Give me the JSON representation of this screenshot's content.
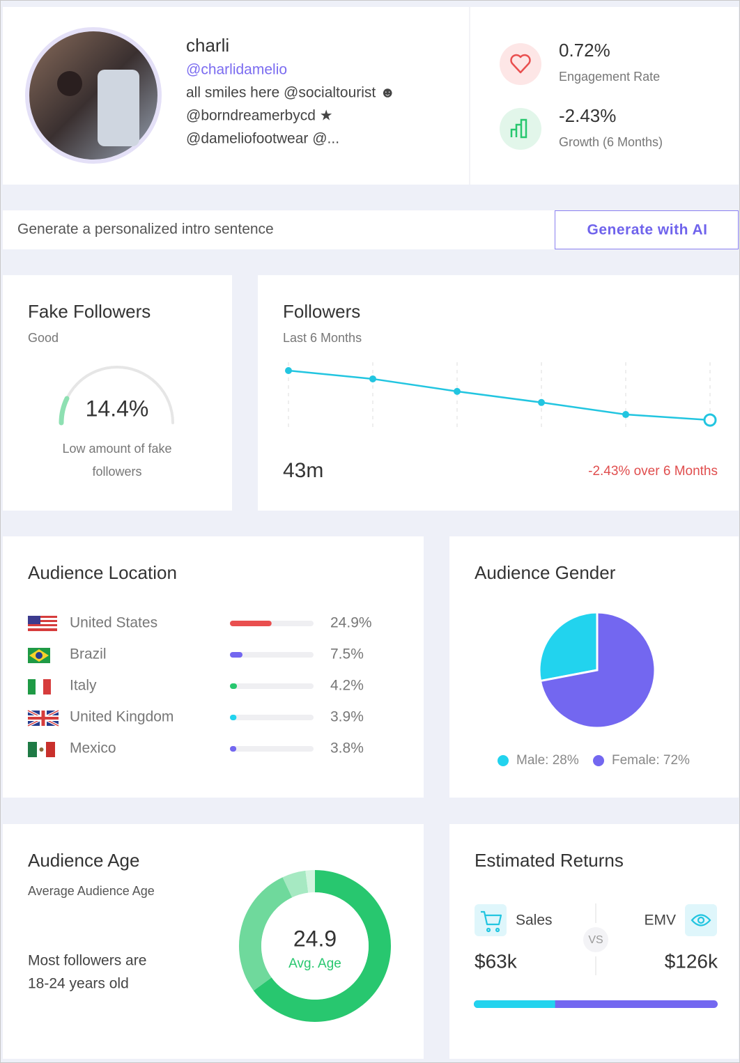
{
  "profile": {
    "name": "charli",
    "handle": "@charlidamelio",
    "bio": [
      "all smiles here @socialtourist ☻",
      "@borndreamerbycd ★",
      "@dameliofootwear @..."
    ]
  },
  "stats": [
    {
      "value": "0.72%",
      "label": "Engagement Rate"
    },
    {
      "value": "-2.43%",
      "label": "Growth (6 Months)"
    }
  ],
  "intro": {
    "placeholder": "Generate a personalized intro sentence",
    "button": "Generate with AI"
  },
  "fake_followers": {
    "title": "Fake Followers",
    "rating": "Good",
    "type": "gauge",
    "value": 14.4,
    "value_label": "14.4%",
    "range": [
      0,
      100
    ],
    "color": "#8ee0b2",
    "description": [
      "Low amount of fake",
      "followers"
    ]
  },
  "followers": {
    "title": "Followers",
    "subtitle": "Last 6 Months",
    "type": "line",
    "values": [
      44.07,
      43.89,
      43.62,
      43.38,
      43.12,
      43.0
    ],
    "color": "#22c5e0",
    "total": "43m",
    "change": "-2.43% over 6 Months"
  },
  "location": {
    "title": "Audience Location",
    "xlim": [
      0,
      50
    ],
    "rows": [
      {
        "country": "United States",
        "value": 24.9,
        "value_label": "24.9%",
        "color": "#e94f4f"
      },
      {
        "country": "Brazil",
        "value": 7.5,
        "value_label": "7.5%",
        "color": "#7367f0"
      },
      {
        "country": "Italy",
        "value": 4.2,
        "value_label": "4.2%",
        "color": "#28c76f"
      },
      {
        "country": "United Kingdom",
        "value": 3.9,
        "value_label": "3.9%",
        "color": "#22d3ee"
      },
      {
        "country": "Mexico",
        "value": 3.8,
        "value_label": "3.8%",
        "color": "#7367f0"
      }
    ]
  },
  "gender": {
    "title": "Audience Gender",
    "type": "pie",
    "series": [
      {
        "value": 28,
        "value_label": "Male: 28%",
        "color": "#22d3ee"
      },
      {
        "value": 72,
        "value_label": "Female: 72%",
        "color": "#7367f0"
      }
    ]
  },
  "age": {
    "title": "Audience Age",
    "subtitle": "Average Audience Age",
    "note": [
      "Most followers are",
      "18-24 years old"
    ],
    "average": 24.9,
    "average_label": "Avg. Age",
    "type": "donut",
    "segments": [
      {
        "value": 65,
        "color": "#28c76f"
      },
      {
        "value": 28,
        "color": "#6fd99c"
      },
      {
        "value": 5,
        "color": "#a6e9c2"
      },
      {
        "value": 2,
        "color": "#d3f5e0"
      }
    ]
  },
  "returns": {
    "title": "Estimated Returns",
    "vs": "VS",
    "sales": {
      "label": "Sales",
      "value": 63000,
      "value_label": "$63k",
      "color": "#22d3ee"
    },
    "emv": {
      "label": "EMV",
      "value": 126000,
      "value_label": "$126k",
      "color": "#7367f0"
    }
  }
}
